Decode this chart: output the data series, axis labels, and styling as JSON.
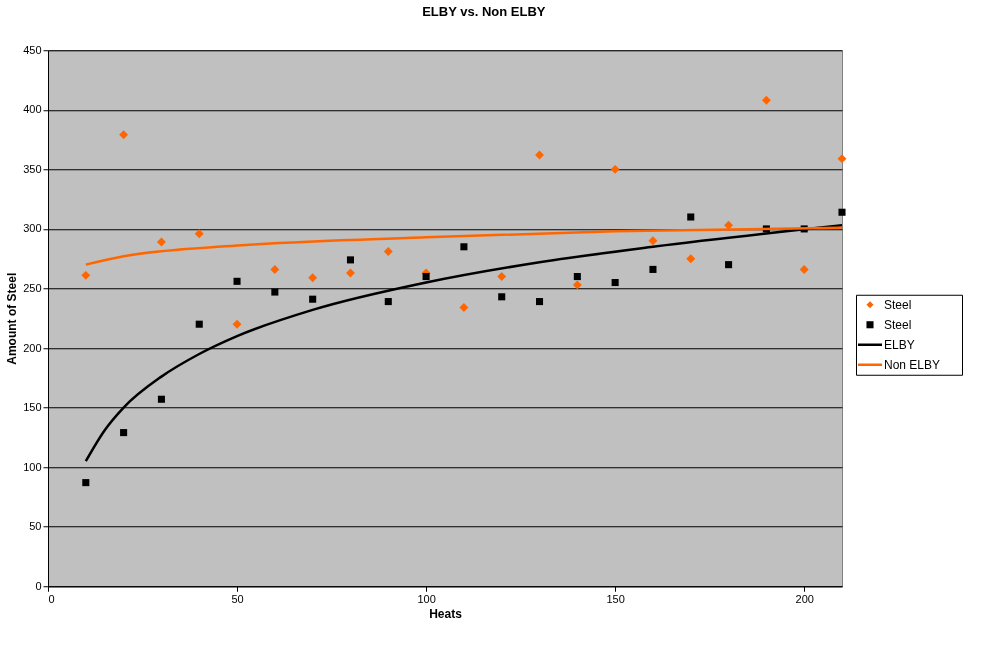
{
  "chart_data": {
    "type": "scatter",
    "title": "ELBY vs. Non ELBY",
    "xlabel": "Heats",
    "ylabel": "Amount of Steel",
    "xlim": [
      0,
      210
    ],
    "xticks": [
      0,
      50,
      100,
      150,
      200
    ],
    "ylim": [
      0,
      450
    ],
    "yticks": [
      0,
      50,
      100,
      150,
      200,
      250,
      300,
      350,
      400,
      450
    ],
    "grid": "y",
    "legend": "right",
    "series": [
      {
        "name": "Steel",
        "marker": "diamond",
        "color": "#ff6600",
        "x": [
          10,
          20,
          30,
          40,
          50,
          60,
          70,
          80,
          90,
          100,
          110,
          120,
          130,
          140,
          150,
          160,
          170,
          180,
          190,
          200,
          210
        ],
        "values": [
          261,
          379,
          289,
          296,
          220,
          266,
          259,
          263,
          281,
          263,
          234,
          260,
          362,
          253,
          350,
          290,
          275,
          303,
          408,
          266,
          359
        ]
      },
      {
        "name": "Steel",
        "marker": "square",
        "color": "#000000",
        "x": [
          10,
          20,
          30,
          40,
          50,
          60,
          70,
          80,
          90,
          100,
          110,
          120,
          130,
          140,
          150,
          160,
          170,
          180,
          190,
          200,
          210
        ],
        "values": [
          87,
          129,
          157,
          220,
          256,
          247,
          241,
          274,
          239,
          260,
          285,
          243,
          239,
          260,
          255,
          266,
          310,
          270,
          300,
          300,
          314
        ]
      },
      {
        "name": "ELBY",
        "type": "line",
        "marker": "none",
        "color": "#000000",
        "x": [
          10,
          15,
          20,
          30,
          40,
          50,
          70,
          100,
          130,
          160,
          210
        ],
        "values": [
          105,
          131,
          150,
          176,
          195,
          210,
          232,
          255,
          272,
          285,
          303
        ]
      },
      {
        "name": "Non ELBY",
        "type": "line",
        "marker": "none",
        "color": "#ff6600",
        "x": [
          10,
          20,
          50,
          100,
          150,
          210
        ],
        "values": [
          270,
          277,
          286,
          293,
          298,
          301
        ]
      }
    ]
  }
}
